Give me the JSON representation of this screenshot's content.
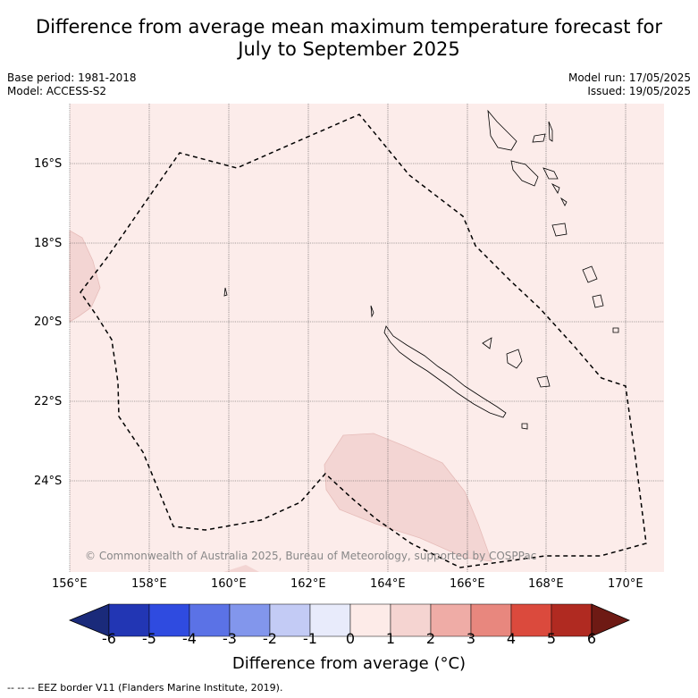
{
  "title_line1": "Difference from average mean maximum temperature forecast for",
  "title_line2": "July to September 2025",
  "meta_left": {
    "base_period": "Base period: 1981-2018",
    "model": "Model: ACCESS-S2"
  },
  "meta_right": {
    "model_run": "Model run: 17/05/2025",
    "issued": "Issued: 19/05/2025"
  },
  "copyright": "© Commonwealth of Australia 2025, Bureau of Meteorology, supported by COSPPac",
  "lat_labels": [
    "16°S",
    "18°S",
    "20°S",
    "22°S",
    "24°S"
  ],
  "lon_labels": [
    "156°E",
    "158°E",
    "160°E",
    "162°E",
    "164°E",
    "166°E",
    "168°E",
    "170°E"
  ],
  "colorbar": {
    "ticks": [
      "-6",
      "-5",
      "-4",
      "-3",
      "-2",
      "-1",
      "0",
      "1",
      "2",
      "3",
      "4",
      "5",
      "6"
    ],
    "colors": [
      "#1a2a7a",
      "#2236b4",
      "#2f4be0",
      "#5b72e6",
      "#8296ec",
      "#c3cbf5",
      "#e8ebfb",
      "#fdebe8",
      "#f5d4d1",
      "#efaca6",
      "#e8877e",
      "#db4a3d",
      "#b02a21",
      "#6e1a14"
    ],
    "title": "Difference from average (°C)"
  },
  "footer": "-- -- -- EEZ border V11 (Flanders Marine Institute, 2019).",
  "colors": {
    "background_anomaly": "#fcecea",
    "warm_patch": "#f3d5d3",
    "eez_line": "#000000"
  }
}
